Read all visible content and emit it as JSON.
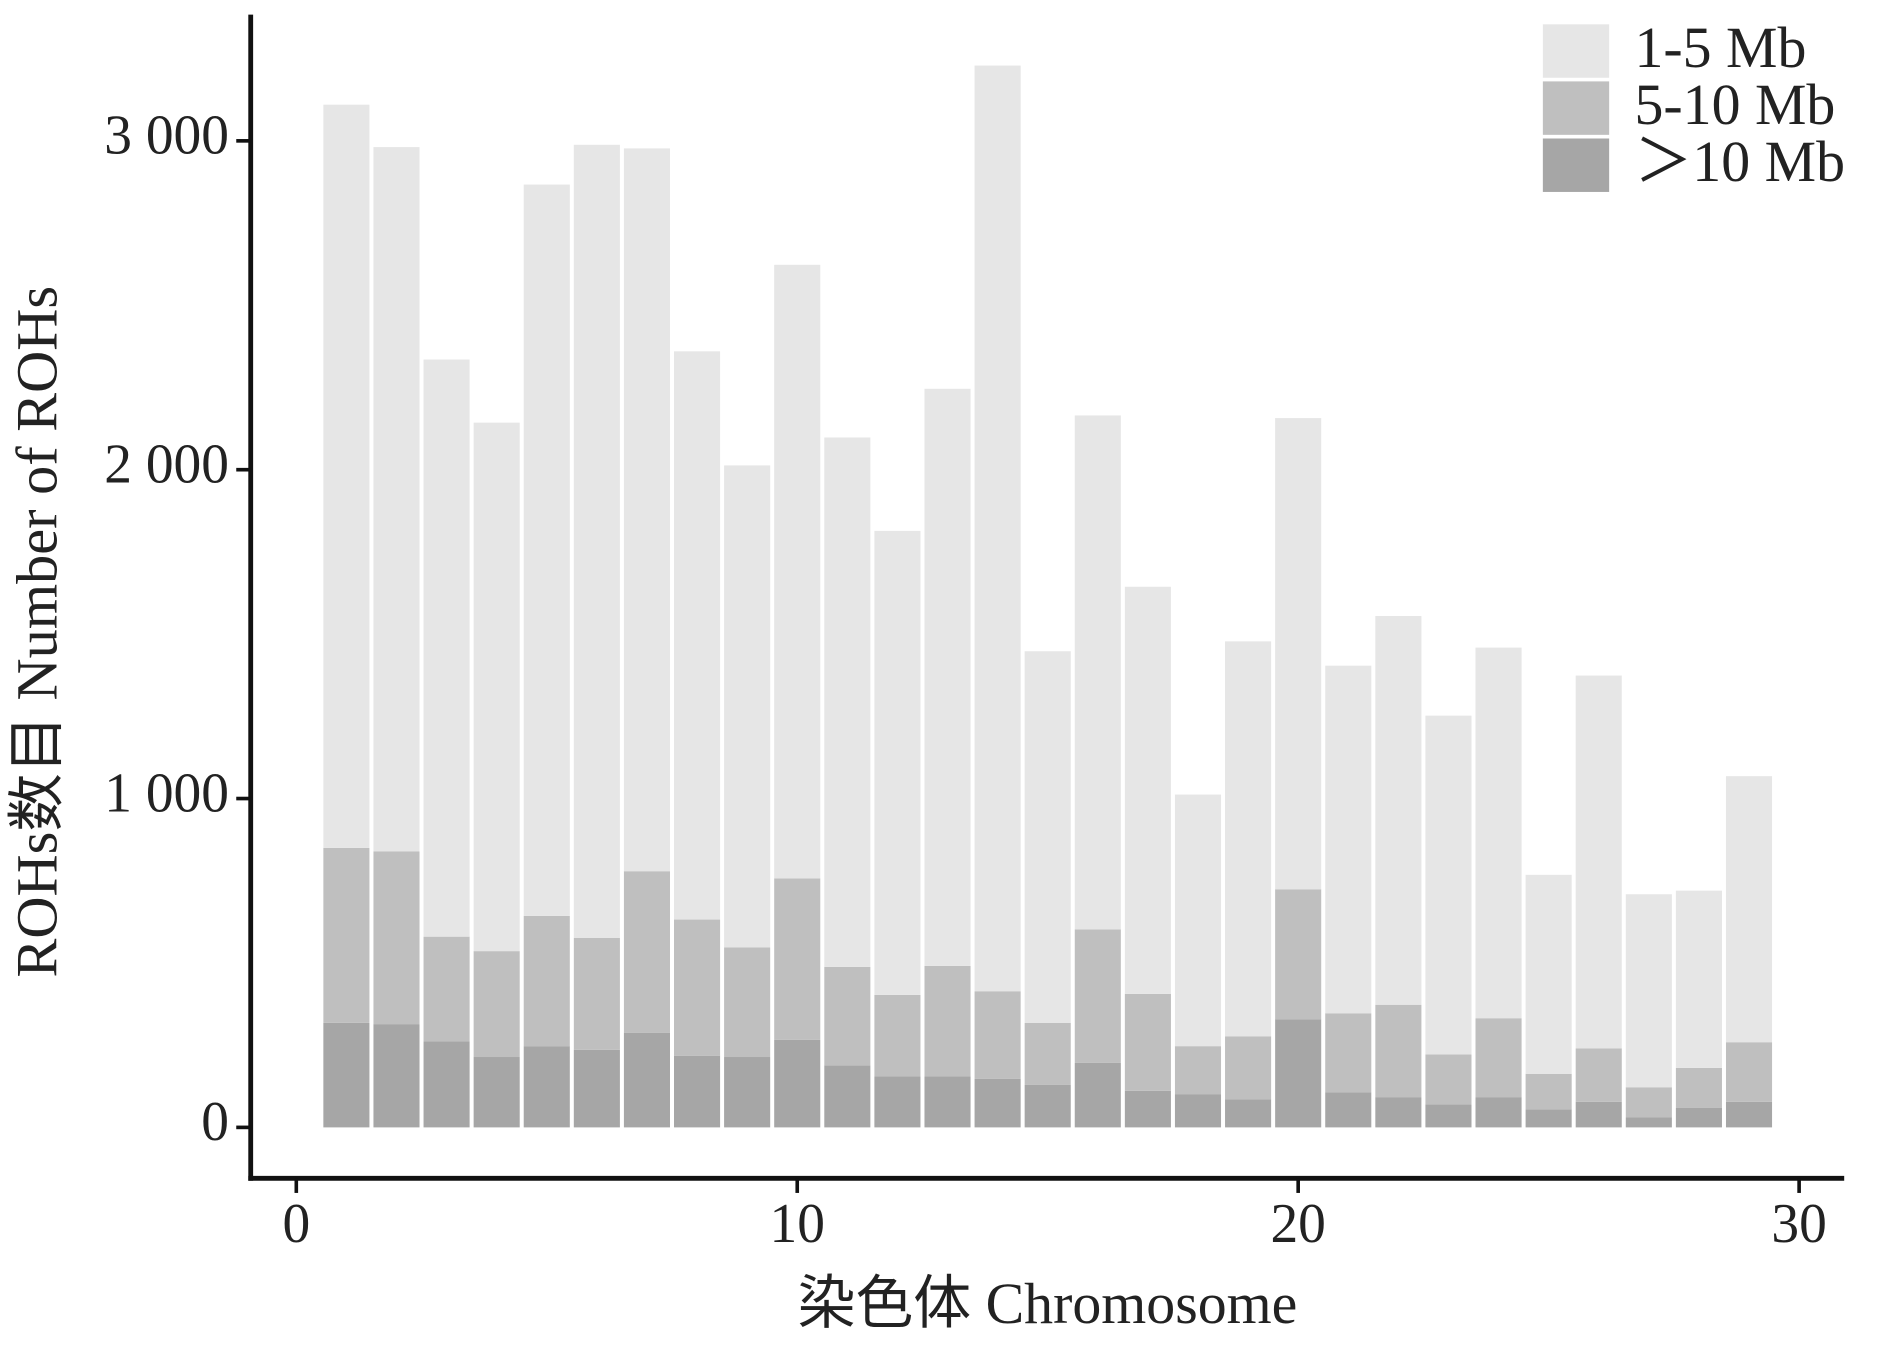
{
  "chart_data": {
    "type": "stacked_bar",
    "xlabel": "染色体 Chromosome",
    "ylabel": "ROHs数目 Number of ROHs",
    "x": [
      1,
      2,
      3,
      4,
      5,
      6,
      7,
      8,
      9,
      10,
      11,
      12,
      13,
      14,
      15,
      16,
      17,
      18,
      19,
      20,
      21,
      22,
      23,
      24,
      25,
      26,
      27,
      28,
      29
    ],
    "series": [
      {
        "name": "1-5 Mb",
        "color": "#e6e6e6",
        "values": [
          2260,
          2142,
          1755,
          1607,
          2224,
          2412,
          2198,
          1728,
          1466,
          1866,
          1610,
          1411,
          1755,
          2815,
          1130,
          1563,
          1238,
          765,
          1201,
          1433,
          1057,
          1182,
          1030,
          1127,
          605,
          1134,
          587,
          539,
          809
        ]
      },
      {
        "name": "5-10 Mb",
        "color": "#bfbfbf",
        "values": [
          532,
          525,
          318,
          322,
          396,
          340,
          491,
          414,
          333,
          491,
          300,
          248,
          336,
          266,
          189,
          406,
          295,
          147,
          192,
          395,
          240,
          281,
          152,
          240,
          108,
          162,
          92,
          122,
          181
        ]
      },
      {
        "name": "＞10 Mb",
        "color": "#a6a6a6",
        "values": [
          318,
          314,
          262,
          214,
          247,
          236,
          288,
          218,
          214,
          266,
          188,
          155,
          155,
          148,
          129,
          196,
          111,
          100,
          85,
          329,
          107,
          92,
          70,
          92,
          55,
          78,
          30,
          59,
          78
        ]
      }
    ],
    "xlim": [
      -0.91,
      30.9
    ],
    "xticks": [
      0,
      10,
      20,
      30
    ],
    "ylim": [
      -155,
      3384
    ],
    "yticks": [
      0,
      {
        "value": 1000,
        "label": "1 000"
      },
      {
        "value": 2000,
        "label": "2 000"
      },
      {
        "value": 3000,
        "label": "3 000"
      }
    ],
    "legend": "top-right"
  }
}
